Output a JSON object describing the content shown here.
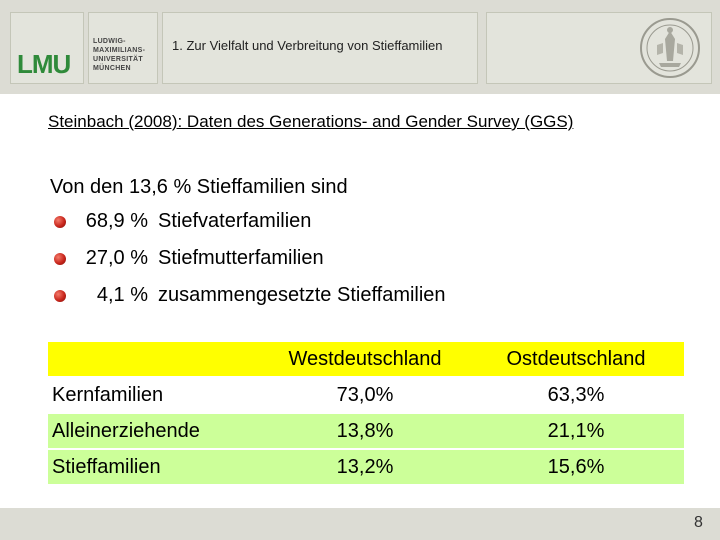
{
  "header": {
    "logo": "LMU",
    "university": [
      "LUDWIG-",
      "MAXIMILIANS-",
      "UNIVERSITÄT",
      "MÜNCHEN"
    ],
    "title": "1. Zur Vielfalt und Verbreitung von Stieffamilien"
  },
  "subtitle": "Steinbach (2008): Daten des Generations- and Gender Survey (GGS)",
  "intro": "Von den 13,6 % Stieffamilien sind",
  "bullets": [
    {
      "pct": "68,9 %",
      "label": "Stiefvaterfamilien"
    },
    {
      "pct": "27,0 %",
      "label": "Stiefmutterfamilien"
    },
    {
      "pct": "4,1 %",
      "label": "zusammengesetzte Stieffamilien"
    }
  ],
  "table": {
    "headers": [
      "",
      "Westdeutschland",
      "Ostdeutschland"
    ],
    "rows": [
      [
        "Kernfamilien",
        "73,0%",
        "63,3%"
      ],
      [
        "Alleinerziehende",
        "13,8%",
        "21,1%"
      ],
      [
        "Stieffamilien",
        "13,2%",
        "15,6%"
      ]
    ]
  },
  "page_number": "8",
  "colors": {
    "header_bg": "#dcdcd4",
    "table_header_yellow": "#ffff00",
    "table_row_green": "#ccff99",
    "bullet_red": "#c8261c",
    "logo_green": "#2f8a3a"
  }
}
